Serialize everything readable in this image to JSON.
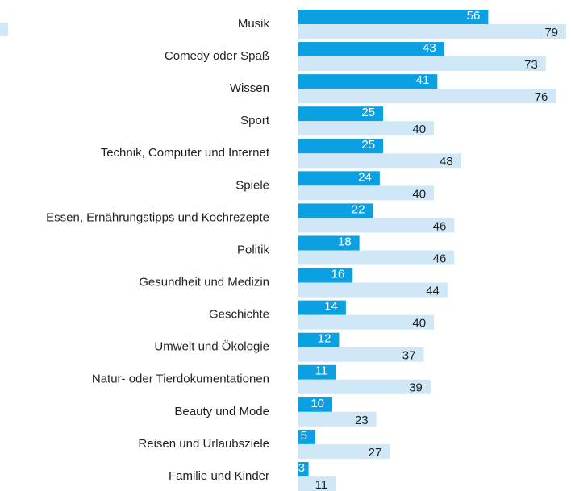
{
  "chart_data": {
    "type": "bar",
    "orientation": "horizontal",
    "categories": [
      "Musik",
      "Comedy oder Spaß",
      "Wissen",
      "Sport",
      "Technik, Computer und Internet",
      "Spiele",
      "Essen, Ernährungstipps und Kochrezepte",
      "Politik",
      "Gesundheit und Medizin",
      "Geschichte",
      "Umwelt und Ökologie",
      "Natur- oder Tierdokumentationen",
      "Beauty und Mode",
      "Reisen und Urlaubsziele",
      "Familie und Kinder"
    ],
    "series": [
      {
        "color": "#0aa0e2",
        "values": [
          56,
          43,
          41,
          25,
          25,
          24,
          22,
          18,
          16,
          14,
          12,
          11,
          10,
          5,
          3
        ]
      },
      {
        "color": "#cfe7f7",
        "values": [
          79,
          73,
          76,
          40,
          48,
          40,
          46,
          46,
          44,
          40,
          37,
          39,
          23,
          27,
          11
        ]
      }
    ]
  }
}
